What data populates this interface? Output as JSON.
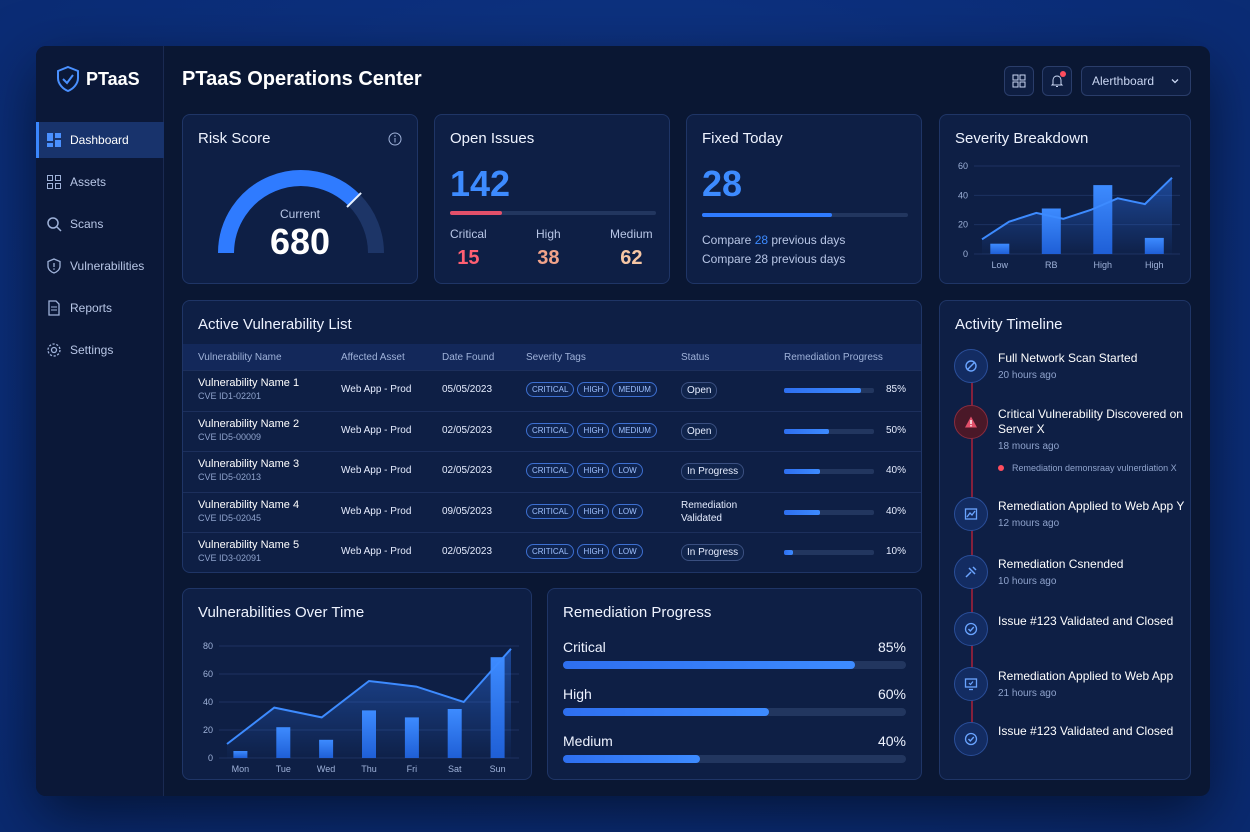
{
  "brand": {
    "name": "PTaaS"
  },
  "header": {
    "title": "PTaaS Operations Center",
    "select_value": "Alerthboard"
  },
  "sidebar": {
    "items": [
      {
        "label": "Dashboard",
        "icon": "dashboard-icon",
        "active": true
      },
      {
        "label": "Assets",
        "icon": "assets-icon"
      },
      {
        "label": "Scans",
        "icon": "search-icon"
      },
      {
        "label": "Vulnerabilities",
        "icon": "shield-icon"
      },
      {
        "label": "Reports",
        "icon": "document-icon"
      },
      {
        "label": "Settings",
        "icon": "gear-icon"
      }
    ]
  },
  "risk": {
    "title": "Risk Score",
    "caption": "Current",
    "value": "680",
    "gauge_fraction": 0.75
  },
  "open_issues": {
    "title": "Open Issues",
    "value": "142",
    "bar_fraction": 0.25,
    "critical_label": "Critical",
    "critical_value": "15",
    "high_label": "High",
    "high_value": "38",
    "medium_label": "Medium",
    "medium_value": "62"
  },
  "fixed_today": {
    "title": "Fixed Today",
    "value": "28",
    "bar_fraction": 0.63,
    "compare_prefix": "Compare ",
    "compare_num": "28",
    "compare_suffix": " previous days",
    "compare_line2": "Compare 28 previous days"
  },
  "severity_breakdown": {
    "title": "Severity Breakdown"
  },
  "vuln_list": {
    "title": "Active Vulnerability List",
    "headers": [
      "Vulnerability Name",
      "Affected Asset",
      "Date Found",
      "Severity Tags",
      "Status",
      "Remediation Progress"
    ],
    "rows": [
      {
        "name": "Vulnerability Name 1",
        "cve": "CVE ID1-02201",
        "asset": "Web App - Prod",
        "date": "05/05/2023",
        "tags": [
          "CRITICAL",
          "HIGH",
          "MEDIUM"
        ],
        "status": "Open",
        "progress": 0.85,
        "pct": "85%"
      },
      {
        "name": "Vulnerability Name 2",
        "cve": "CVE ID5-00009",
        "asset": "Web App - Prod",
        "date": "02/05/2023",
        "tags": [
          "CRITICAL",
          "HIGH",
          "MEDIUM"
        ],
        "status": "Open",
        "progress": 0.5,
        "pct": "50%"
      },
      {
        "name": "Vulnerability Name 3",
        "cve": "CVE ID5-02013",
        "asset": "Web App - Prod",
        "date": "02/05/2023",
        "tags": [
          "CRITICAL",
          "HIGH",
          "LOW"
        ],
        "status": "In Progress",
        "progress": 0.4,
        "pct": "40%"
      },
      {
        "name": "Vulnerability Name 4",
        "cve": "CVE ID5-02045",
        "asset": "Web App - Prod",
        "date": "09/05/2023",
        "tags": [
          "CRITICAL",
          "HIGH",
          "LOW"
        ],
        "status": "Remediation Validated",
        "progress": 0.4,
        "pct": "40%"
      },
      {
        "name": "Vulnerability Name 5",
        "cve": "CVE ID3-02091",
        "asset": "Web App - Prod",
        "date": "02/05/2023",
        "tags": [
          "CRITICAL",
          "HIGH",
          "LOW"
        ],
        "status": "In Progress",
        "progress": 0.1,
        "pct": "10%"
      }
    ]
  },
  "vulns_over_time": {
    "title": "Vulnerabilities Over Time"
  },
  "remediation": {
    "title": "Remediation Progress",
    "items": [
      {
        "label": "Critical",
        "pct": "85%",
        "value": 0.85
      },
      {
        "label": "High",
        "pct": "60%",
        "value": 0.6
      },
      {
        "label": "Medium",
        "pct": "40%",
        "value": 0.4
      }
    ]
  },
  "timeline": {
    "title": "Activity Timeline",
    "items": [
      {
        "title": "Full Network Scan Started",
        "time": "20 hours ago",
        "icon": "scan-icon"
      },
      {
        "title": "Critical Vulnerability Discovered on Server X",
        "time": "18 mours ago",
        "icon": "alert-icon",
        "sub": "Remediation demonsraay vulnerdiation X"
      },
      {
        "title": "Remediation Applied to Web App Y",
        "time": "12 mours ago",
        "icon": "chart-icon"
      },
      {
        "title": "Remediation Csnended",
        "time": "10 hours ago",
        "icon": "fix-icon"
      },
      {
        "title": "Issue #123 Validated and Closed",
        "time": "",
        "icon": "check-icon"
      },
      {
        "title": "Remediation Applied to Web App",
        "time": "21 hours ago",
        "icon": "monitor-icon"
      },
      {
        "title": "Issue #123 Validated and Closed",
        "time": "",
        "icon": "check-icon"
      }
    ]
  },
  "chart_data": [
    {
      "type": "bar",
      "title": "Severity Breakdown",
      "categories": [
        "Low",
        "RB",
        "High",
        "High"
      ],
      "values": [
        7,
        31,
        47,
        11
      ],
      "line": [
        10,
        22,
        28,
        24,
        30,
        38,
        34,
        52
      ],
      "ylim": [
        0,
        60
      ],
      "yticks": [
        0,
        20,
        40,
        60
      ]
    },
    {
      "type": "bar",
      "title": "Vulnerabilities Over Time",
      "categories": [
        "Mon",
        "Tue",
        "Wed",
        "Thu",
        "Fri",
        "Sat",
        "Sun"
      ],
      "values": [
        5,
        22,
        13,
        34,
        29,
        35,
        72
      ],
      "line": [
        10,
        36,
        29,
        55,
        51,
        40,
        78
      ],
      "ylim": [
        0,
        80
      ],
      "yticks": [
        0,
        20,
        40,
        60,
        80
      ]
    }
  ]
}
